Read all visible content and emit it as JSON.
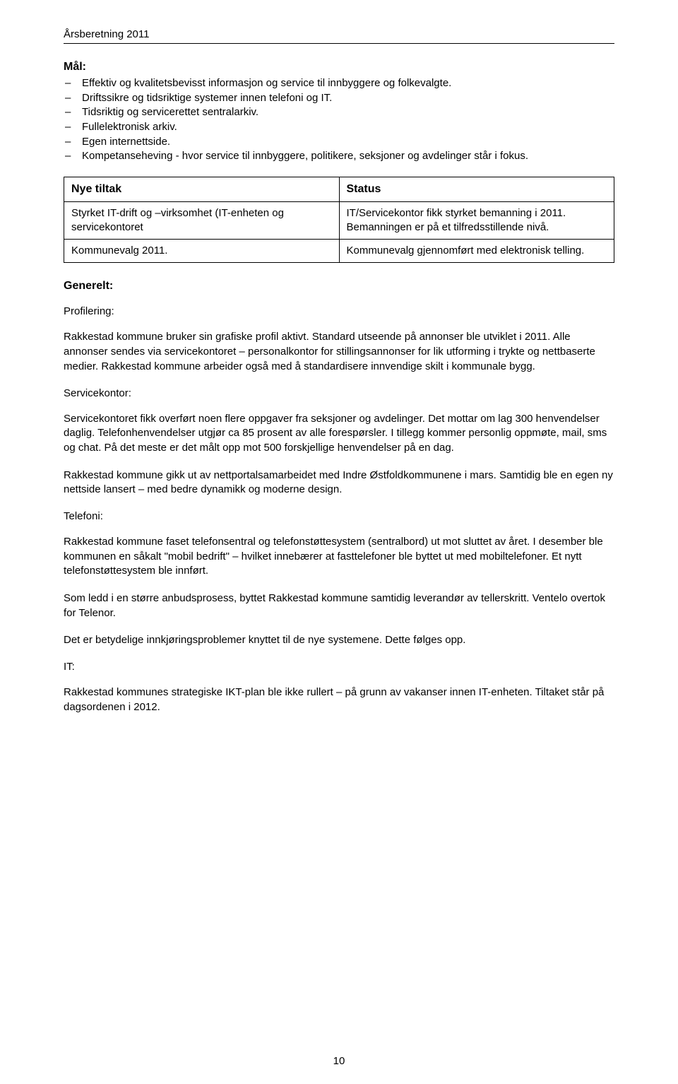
{
  "header": {
    "running_title": "Årsberetning 2011"
  },
  "maal": {
    "heading": "Mål:",
    "items": [
      "Effektiv og kvalitetsbevisst informasjon og service til innbyggere og folkevalgte.",
      "Driftssikre og tidsriktige systemer innen telefoni og IT.",
      "Tidsriktig og servicerettet sentralarkiv.",
      "Fullelektronisk arkiv.",
      "Egen internettside.",
      "Kompetanseheving - hvor service til innbyggere, politikere, seksjoner og avdelinger står i fokus."
    ]
  },
  "tiltak_table": {
    "headers": {
      "col1": "Nye tiltak",
      "col2": "Status"
    },
    "rows": [
      {
        "col1": "Styrket IT-drift og –virksomhet (IT-enheten og servicekontoret",
        "col2": "IT/Servicekontor fikk styrket bemanning i 2011. Bemanningen er på et tilfredsstillende nivå."
      },
      {
        "col1": "Kommunevalg 2011.",
        "col2": "Kommunevalg gjennomført med elektronisk telling."
      }
    ]
  },
  "generelt": {
    "heading": "Generelt:",
    "sections": [
      {
        "title": "Profilering:",
        "paragraphs": [
          "Rakkestad kommune bruker sin grafiske profil aktivt. Standard utseende på annonser ble utviklet i 2011. Alle annonser sendes via servicekontoret – personalkontor for stillingsannonser for lik utforming i trykte og nettbaserte medier. Rakkestad kommune arbeider også med å standardisere innvendige skilt i kommunale bygg."
        ]
      },
      {
        "title": "Servicekontor:",
        "paragraphs": [
          "Servicekontoret fikk overført noen flere oppgaver fra seksjoner og avdelinger. Det mottar om lag 300 henvendelser daglig. Telefonhenvendelser utgjør ca 85 prosent av alle forespørsler. I tillegg kommer personlig oppmøte, mail, sms og chat. På det meste er det målt opp mot 500 forskjellige henvendelser på en dag.",
          "Rakkestad kommune gikk ut av nettportalsamarbeidet med Indre Østfoldkommunene i mars. Samtidig ble en egen ny nettside lansert – med bedre dynamikk og moderne design."
        ]
      },
      {
        "title": "Telefoni:",
        "paragraphs": [
          "Rakkestad kommune faset telefonsentral og telefonstøttesystem (sentralbord) ut mot sluttet av året. I desember ble kommunen en såkalt \"mobil bedrift\" – hvilket innebærer at fasttelefoner ble byttet ut med mobiltelefoner. Et nytt telefonstøttesystem ble innført.",
          "Som ledd i en større anbudsprosess, byttet Rakkestad kommune samtidig leverandør av tellerskritt. Ventelo overtok for Telenor.",
          "Det er betydelige innkjøringsproblemer knyttet til de nye systemene. Dette følges opp."
        ]
      },
      {
        "title": "IT:",
        "paragraphs": [
          "Rakkestad kommunes strategiske IKT-plan ble ikke rullert – på grunn av vakanser innen IT-enheten. Tiltaket står på dagsordenen i 2012."
        ]
      }
    ]
  },
  "page_number": "10",
  "colors": {
    "text": "#000000",
    "background": "#ffffff",
    "border": "#000000"
  }
}
